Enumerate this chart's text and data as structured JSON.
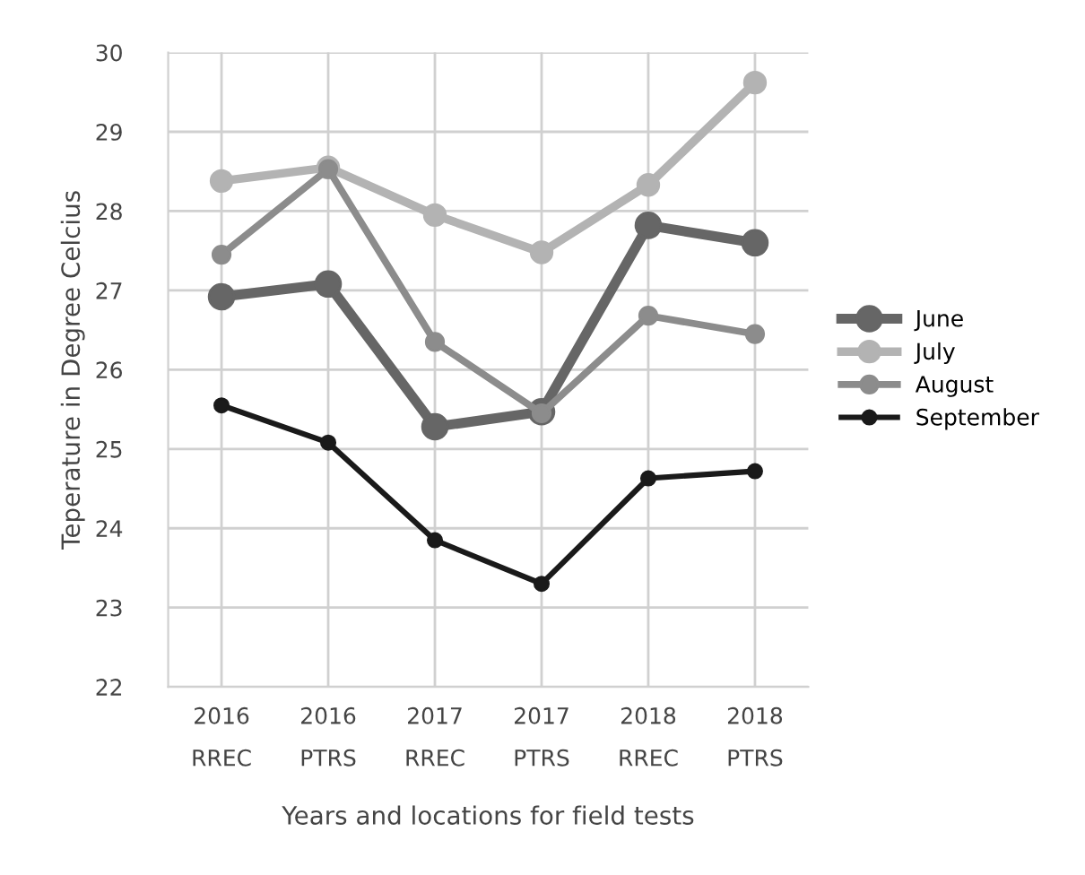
{
  "chart_data": {
    "type": "line",
    "xlabel": "Years and locations for field tests",
    "ylabel": "Teperature in Degree Celcius",
    "categories": [
      "2016\nRREC",
      "2016\nPTRS",
      "2017\nRREC",
      "2017\nPTRS",
      "2018\nRREC",
      "2018\nPTRS"
    ],
    "series": [
      {
        "name": "June",
        "color": "#666666",
        "values": [
          26.92,
          27.08,
          25.28,
          25.47,
          27.82,
          27.6
        ]
      },
      {
        "name": "July",
        "color": "#b3b3b3",
        "values": [
          28.38,
          28.55,
          27.95,
          27.48,
          28.33,
          29.62
        ]
      },
      {
        "name": "August",
        "color": "#8c8c8c",
        "values": [
          27.45,
          28.53,
          26.35,
          25.45,
          26.68,
          26.45
        ]
      },
      {
        "name": "September",
        "color": "#1a1a1a",
        "values": [
          25.55,
          25.08,
          23.85,
          23.3,
          24.63,
          24.72
        ]
      }
    ],
    "ylim": [
      22,
      30
    ],
    "yticks": [
      22,
      23,
      24,
      25,
      26,
      27,
      28,
      29,
      30
    ],
    "grid": true,
    "legend": "right",
    "marker": "circle",
    "line_style": "solid"
  }
}
